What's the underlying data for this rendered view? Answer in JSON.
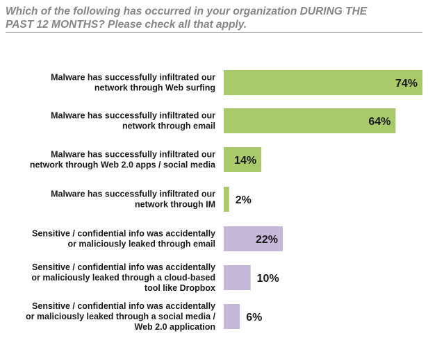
{
  "chart_data": {
    "type": "bar",
    "orientation": "horizontal",
    "title": "Which of the following has occurred in your organization DURING THE\nPAST 12 MONTHS?  Please check all that apply.",
    "categories": [
      [
        "Malware has successfully infiltrated our",
        "network through Web surfing"
      ],
      [
        "Malware has successfully infiltrated our",
        "network through email"
      ],
      [
        "Malware has successfully infiltrated our",
        "network through Web 2.0 apps / social media"
      ],
      [
        "Malware has successfully infiltrated our",
        "network through IM"
      ],
      [
        "Sensitive / confidential info was accidentally",
        "or maliciously leaked through email"
      ],
      [
        "Sensitive / confidential info was accidentally",
        "or maliciously leaked through a cloud-based",
        "tool like Dropbox"
      ],
      [
        "Sensitive / confidential info was accidentally",
        "or maliciously leaked through a social media /",
        "Web 2.0 application"
      ]
    ],
    "values": [
      74,
      64,
      14,
      2,
      22,
      10,
      6
    ],
    "value_labels": [
      "74%",
      "64%",
      "14%",
      "2%",
      "22%",
      "10%",
      "6%"
    ],
    "unit": "%",
    "xlim": [
      0,
      74
    ],
    "colors": [
      "#a9c96b",
      "#a9c96b",
      "#a9c96b",
      "#a9c96b",
      "#c5b8d8",
      "#c5b8d8",
      "#c5b8d8"
    ],
    "label_position": [
      "inside",
      "inside",
      "inside",
      "outside",
      "inside",
      "outside",
      "outside"
    ],
    "grid": false,
    "legend": "none"
  }
}
